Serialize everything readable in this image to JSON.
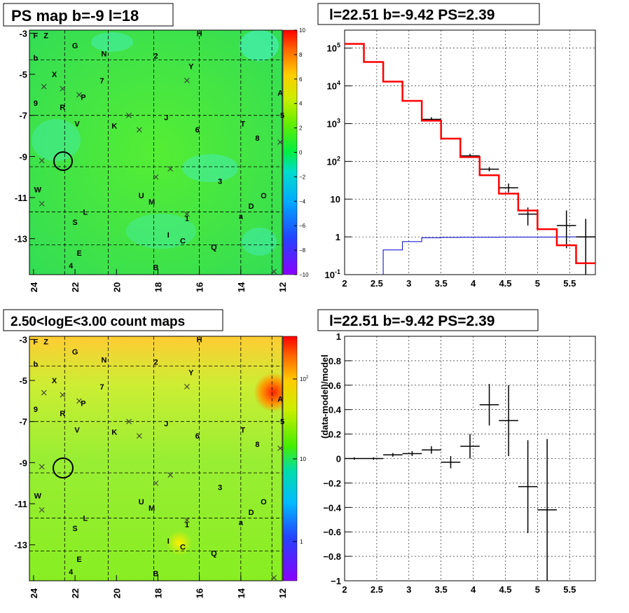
{
  "panels": {
    "top_left_title": "PS map b=-9 l=18",
    "top_right_title": "l=22.51 b=-9.42 PS=2.39",
    "bottom_left_title": "2.50<logE<3.00 count maps",
    "bottom_right_title": "l=22.51 b=-9.42 PS=2.39"
  },
  "colors": {
    "data": "#000000",
    "model": "#ff0000",
    "background_model": "#0000cc",
    "grid": "#000000"
  },
  "chart_data": [
    {
      "type": "heatmap",
      "title": "PS map b=-9 l=18",
      "x_ticks": [
        "24",
        "22",
        "20",
        "18",
        "16",
        "14",
        "12"
      ],
      "y_ticks": [
        "-3",
        "-5",
        "-7",
        "-9",
        "-11",
        "-13"
      ],
      "xlim": [
        24,
        12
      ],
      "ylim": [
        -14.6,
        -3
      ],
      "colorbar_ticks": [
        "10",
        "8",
        "6",
        "4",
        "2",
        "0",
        "−2",
        "−4",
        "−6",
        "−8",
        "−10"
      ],
      "colorbar_range": [
        -10,
        10
      ],
      "circle_center": [
        22.6,
        -9.4
      ],
      "source_labels": [
        {
          "t": "F",
          "l": 23.9,
          "b": -3.1
        },
        {
          "t": "Z",
          "l": 23.4,
          "b": -3.1
        },
        {
          "t": "H",
          "l": 16.0,
          "b": -3.0
        },
        {
          "t": "G",
          "l": 22.0,
          "b": -3.6
        },
        {
          "t": "N",
          "l": 20.6,
          "b": -4.0
        },
        {
          "t": "2",
          "l": 18.1,
          "b": -4.1
        },
        {
          "t": "b",
          "l": 23.9,
          "b": -4.2
        },
        {
          "t": "Y",
          "l": 16.4,
          "b": -4.6
        },
        {
          "t": "X",
          "l": 23.0,
          "b": -5.0
        },
        {
          "t": "7",
          "l": 20.7,
          "b": -5.3
        },
        {
          "t": "A",
          "l": 12.1,
          "b": -5.9
        },
        {
          "t": "P",
          "l": 21.6,
          "b": -6.1
        },
        {
          "t": "9",
          "l": 23.9,
          "b": -6.4
        },
        {
          "t": "R",
          "l": 22.6,
          "b": -6.6
        },
        {
          "t": "5",
          "l": 12.0,
          "b": -7.0
        },
        {
          "t": "J",
          "l": 17.6,
          "b": -7.1
        },
        {
          "t": "T",
          "l": 13.9,
          "b": -7.4
        },
        {
          "t": "V",
          "l": 21.9,
          "b": -7.4
        },
        {
          "t": "K",
          "l": 20.1,
          "b": -7.5
        },
        {
          "t": "6",
          "l": 16.1,
          "b": -7.7
        },
        {
          "t": "8",
          "l": 13.2,
          "b": -8.1
        },
        {
          "t": "3",
          "l": 15.0,
          "b": -10.2
        },
        {
          "t": "W",
          "l": 23.8,
          "b": -10.6
        },
        {
          "t": "U",
          "l": 18.8,
          "b": -10.9
        },
        {
          "t": "O",
          "l": 12.9,
          "b": -10.9
        },
        {
          "t": "M",
          "l": 18.3,
          "b": -11.2
        },
        {
          "t": "D",
          "l": 13.5,
          "b": -11.4
        },
        {
          "t": "L",
          "l": 21.5,
          "b": -11.7
        },
        {
          "t": "1",
          "l": 16.6,
          "b": -12.0
        },
        {
          "t": "a",
          "l": 14.0,
          "b": -11.9
        },
        {
          "t": "S",
          "l": 22.0,
          "b": -12.2
        },
        {
          "t": "I",
          "l": 17.5,
          "b": -12.8
        },
        {
          "t": "C",
          "l": 16.8,
          "b": -13.1
        },
        {
          "t": "Q",
          "l": 15.3,
          "b": -13.4
        },
        {
          "t": "E",
          "l": 21.8,
          "b": -13.7
        },
        {
          "t": "4",
          "l": 22.2,
          "b": -14.3
        },
        {
          "t": "B",
          "l": 18.1,
          "b": -14.4
        }
      ],
      "cross_marks": [
        [
          23.5,
          -5.6
        ],
        [
          22.6,
          -5.7
        ],
        [
          21.8,
          -6.0
        ],
        [
          19.4,
          -7.0
        ],
        [
          18.9,
          -7.7
        ],
        [
          16.6,
          -5.3
        ],
        [
          17.4,
          -9.6
        ],
        [
          18.1,
          -10.0
        ],
        [
          23.6,
          -9.2
        ],
        [
          23.6,
          -11.3
        ],
        [
          16.6,
          -11.8
        ],
        [
          12.1,
          -8.3
        ],
        [
          12.4,
          -14.6
        ]
      ]
    },
    {
      "type": "line",
      "title": "l=22.51 b=-9.42 PS=2.39",
      "x_ticks": [
        "2",
        "2.5",
        "3",
        "3.5",
        "4",
        "4.5",
        "5",
        "5.5"
      ],
      "y_ticks": [
        "10^-1",
        "1",
        "10",
        "10^2",
        "10^3",
        "10^4",
        "10^5"
      ],
      "xlim": [
        2,
        5.9
      ],
      "ylim": [
        0.1,
        300000
      ],
      "y_scale": "log",
      "grid": true,
      "bin_edges": [
        2.0,
        2.3,
        2.6,
        2.9,
        3.2,
        3.5,
        3.8,
        4.1,
        4.4,
        4.7,
        5.0,
        5.3,
        5.6,
        5.9
      ],
      "model": [
        130000,
        43000,
        13000,
        4000,
        1200,
        400,
        130,
        43,
        14,
        5,
        1.6,
        0.6,
        0.2
      ],
      "background_model": [
        0.1,
        0.1,
        0.45,
        0.75,
        0.95,
        0.97,
        0.98,
        0.98,
        0.99,
        0.99,
        0.99,
        1.0,
        1.0
      ],
      "data": [
        {
          "x": 3.35,
          "y": 1300
        },
        {
          "x": 3.95,
          "y": 140
        },
        {
          "x": 4.25,
          "y": 62
        },
        {
          "x": 4.55,
          "y": 20,
          "lo": 15,
          "hi": 26
        },
        {
          "x": 4.85,
          "y": 4,
          "lo": 2,
          "hi": 6
        },
        {
          "x": 5.45,
          "y": 2,
          "lo": 0.5,
          "hi": 5
        },
        {
          "x": 5.75,
          "y": 1,
          "lo": 0.1,
          "hi": 3
        }
      ]
    },
    {
      "type": "heatmap",
      "title": "2.50<logE<3.00 count maps",
      "x_ticks": [
        "24",
        "22",
        "20",
        "18",
        "16",
        "14",
        "12"
      ],
      "y_ticks": [
        "-3",
        "-5",
        "-7",
        "-9",
        "-11",
        "-13"
      ],
      "colorbar_ticks": [
        "10^2",
        "10",
        "1"
      ],
      "colorbar_scale": "log"
    },
    {
      "type": "scatter",
      "title": "l=22.51 b=-9.42 PS=2.39",
      "ylabel": "(data-model)/model",
      "x_ticks": [
        "2",
        "2.5",
        "3",
        "3.5",
        "4",
        "4.5",
        "5",
        "5.5"
      ],
      "y_ticks": [
        "1",
        "0.8",
        "0.6",
        "0.4",
        "0.2",
        "0",
        "−0.2",
        "−0.4",
        "−0.6",
        "−0.8",
        "−1"
      ],
      "xlim": [
        2,
        5.9
      ],
      "ylim": [
        -1,
        1
      ],
      "grid": true,
      "points": [
        {
          "x": 2.15,
          "y": 0.0,
          "e": 0.01
        },
        {
          "x": 2.45,
          "y": 0.0,
          "e": 0.01
        },
        {
          "x": 2.75,
          "y": 0.03,
          "e": 0.015
        },
        {
          "x": 3.05,
          "y": 0.04,
          "e": 0.02
        },
        {
          "x": 3.35,
          "y": 0.07,
          "e": 0.03
        },
        {
          "x": 3.65,
          "y": -0.03,
          "e": 0.05
        },
        {
          "x": 3.95,
          "y": 0.1,
          "e": 0.1
        },
        {
          "x": 4.25,
          "y": 0.44,
          "e": 0.17
        },
        {
          "x": 4.55,
          "y": 0.31,
          "e": 0.29
        },
        {
          "x": 4.85,
          "y": -0.23,
          "e": 0.38
        },
        {
          "x": 5.15,
          "y": -0.42,
          "e": 0.58
        }
      ]
    }
  ]
}
